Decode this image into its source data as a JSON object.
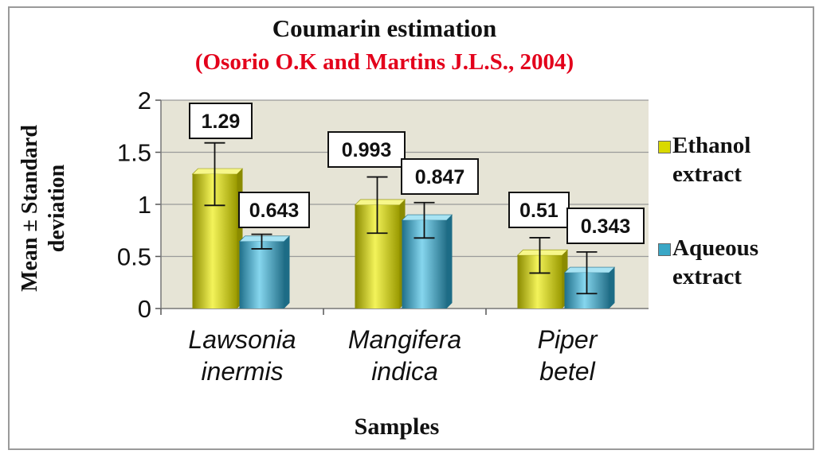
{
  "chart_data": {
    "type": "bar",
    "title": "Coumarin estimation",
    "subtitle": "(Osorio O.K and Martins J.L.S., 2004)",
    "xlabel": "Samples",
    "ylabel": "Mean ± Standard deviation",
    "ylim": [
      0,
      2
    ],
    "yticks": [
      "0",
      "0.5",
      "1",
      "1.5",
      "2"
    ],
    "categories": [
      "Lawsonia inermis",
      "Mangifera indica",
      "Piper betel"
    ],
    "series": [
      {
        "name": "Ethanol extract",
        "color": "#d9d900",
        "values": [
          1.29,
          0.993,
          0.51
        ],
        "errors": [
          0.3,
          0.27,
          0.17
        ]
      },
      {
        "name": "Aqueous extract",
        "color": "#3aa7c6",
        "values": [
          0.643,
          0.847,
          0.343
        ],
        "errors": [
          0.07,
          0.17,
          0.2
        ]
      }
    ],
    "data_labels": [
      [
        "1.29",
        "0.993",
        "0.51"
      ],
      [
        "0.643",
        "0.847",
        "0.343"
      ]
    ],
    "grid": true,
    "legend_position": "right"
  }
}
